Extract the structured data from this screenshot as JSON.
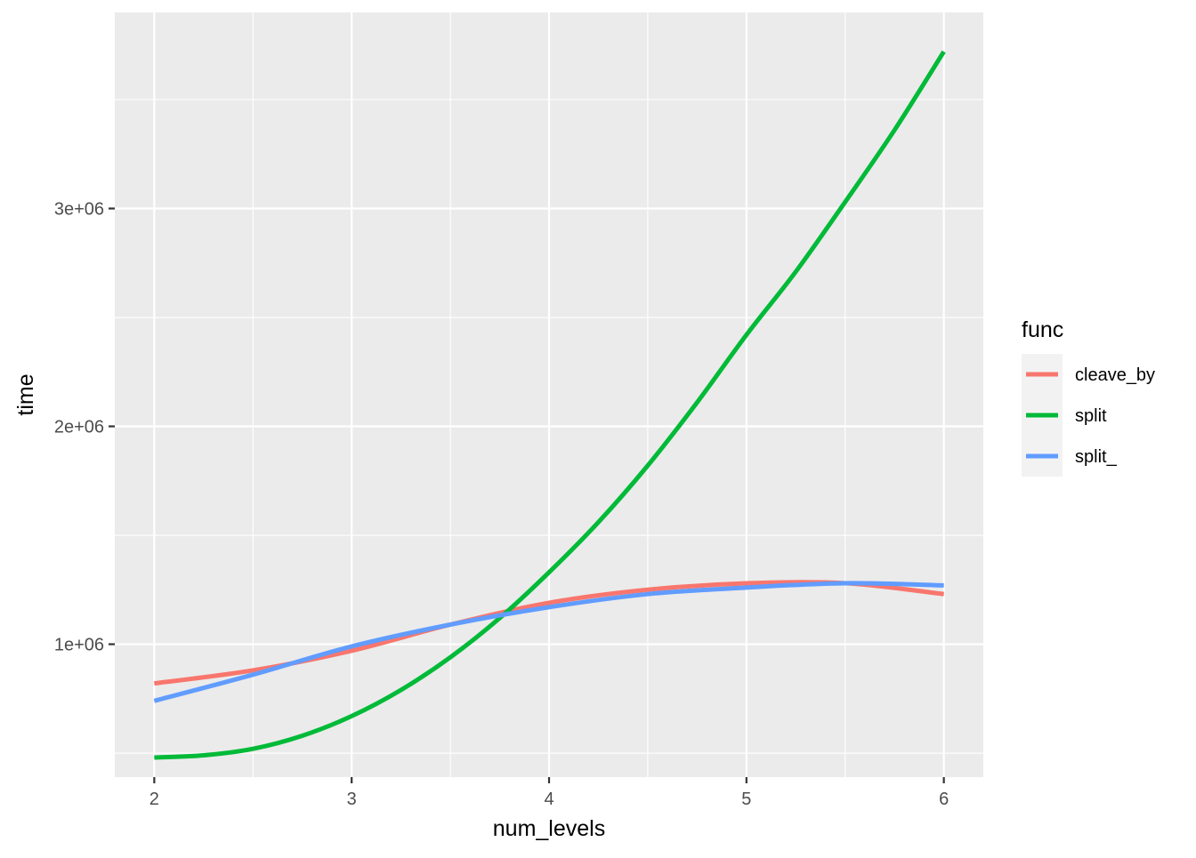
{
  "chart_data": {
    "type": "line",
    "xlabel": "num_levels",
    "ylabel": "time",
    "xlim": [
      1.8,
      6.2
    ],
    "ylim": [
      390000,
      3900000
    ],
    "x_ticks": [
      2,
      3,
      4,
      5,
      6
    ],
    "x_minor": [
      2.5,
      3.5,
      4.5,
      5.5
    ],
    "y_ticks": [
      1000000,
      2000000,
      3000000
    ],
    "y_tick_labels": [
      "1e+06",
      "2e+06",
      "3e+06"
    ],
    "y_minor": [
      500000,
      1500000,
      2500000,
      3500000
    ],
    "grid": true,
    "legend": {
      "title": "func",
      "position": "right"
    },
    "series": [
      {
        "name": "cleave_by",
        "color": "#F8766D",
        "x": [
          2,
          2.5,
          3,
          3.5,
          4,
          4.5,
          5,
          5.5,
          6
        ],
        "y": [
          820000,
          880000,
          970000,
          1090000,
          1190000,
          1250000,
          1280000,
          1280000,
          1230000
        ]
      },
      {
        "name": "split",
        "color": "#00BA38",
        "x": [
          2,
          2.25,
          2.5,
          2.75,
          3,
          3.25,
          3.5,
          3.75,
          4,
          4.25,
          4.5,
          4.75,
          5,
          5.25,
          5.5,
          5.75,
          6
        ],
        "y": [
          480000,
          490000,
          520000,
          580000,
          670000,
          790000,
          940000,
          1120000,
          1330000,
          1560000,
          1820000,
          2110000,
          2420000,
          2710000,
          3030000,
          3360000,
          3720000
        ]
      },
      {
        "name": "split_",
        "color": "#619CFF",
        "x": [
          2,
          2.5,
          3,
          3.5,
          4,
          4.5,
          5,
          5.5,
          6
        ],
        "y": [
          740000,
          860000,
          990000,
          1090000,
          1170000,
          1230000,
          1260000,
          1280000,
          1270000
        ]
      }
    ]
  }
}
